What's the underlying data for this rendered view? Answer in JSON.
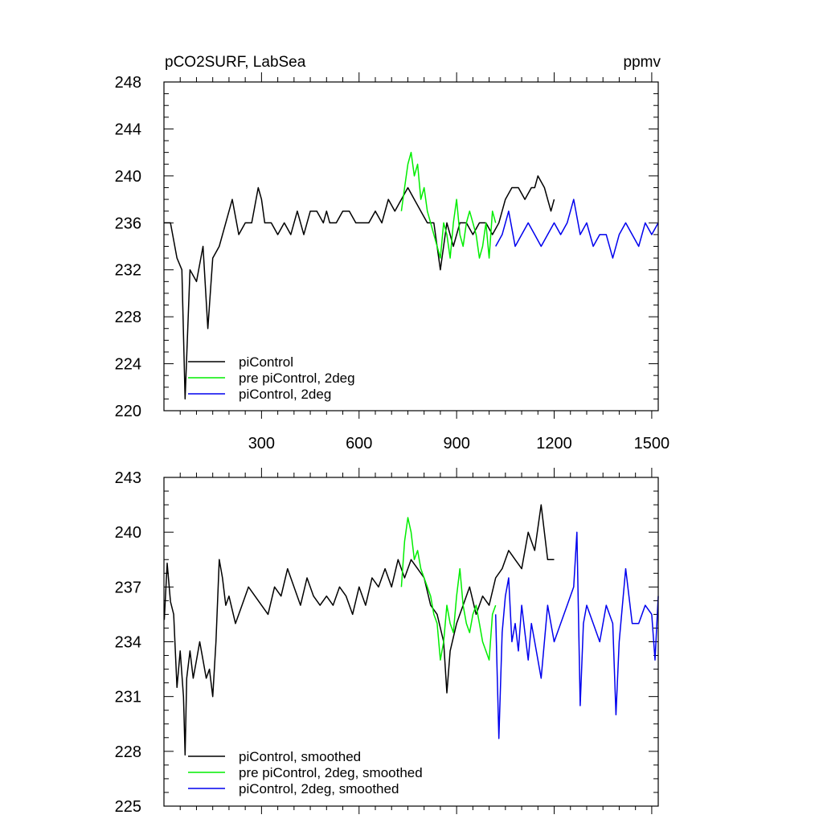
{
  "chart_data": [
    {
      "type": "line",
      "title": "pCO2SURF, LabSea",
      "units": "ppmv",
      "xlim": [
        0,
        1520
      ],
      "ylim": [
        220,
        248
      ],
      "x_ticks": [
        300,
        600,
        900,
        1200,
        1500
      ],
      "x_tick_labels": [
        "300",
        "600",
        "900",
        "1200",
        "1500"
      ],
      "y_ticks": [
        220,
        224,
        228,
        232,
        236,
        240,
        244,
        248
      ],
      "y_tick_labels": [
        "220",
        "224",
        "228",
        "232",
        "236",
        "240",
        "244",
        "248"
      ],
      "grid": false,
      "legend_position": "bottom-left",
      "series": [
        {
          "name": "piControl",
          "color": "#000000",
          "x": [
            1,
            20,
            40,
            55,
            65,
            80,
            100,
            120,
            135,
            150,
            170,
            190,
            210,
            230,
            250,
            270,
            290,
            300,
            310,
            330,
            350,
            370,
            390,
            410,
            430,
            450,
            470,
            490,
            500,
            510,
            530,
            550,
            570,
            590,
            610,
            630,
            650,
            670,
            690,
            710,
            730,
            750,
            770,
            790,
            810,
            830,
            850,
            870,
            890,
            910,
            930,
            950,
            970,
            990,
            1010,
            1030,
            1050,
            1070,
            1090,
            1110,
            1130,
            1140,
            1150,
            1170,
            1190,
            1200
          ],
          "y": [
            236,
            236,
            233,
            232,
            221,
            232,
            231,
            234,
            227,
            233,
            234,
            236,
            238,
            235,
            236,
            236,
            239,
            238,
            236,
            236,
            235,
            236,
            235,
            237,
            235,
            237,
            237,
            236,
            237,
            236,
            236,
            237,
            237,
            236,
            236,
            236,
            237,
            236,
            238,
            237,
            238,
            239,
            238,
            237,
            236,
            236,
            232,
            236,
            234,
            236,
            236,
            235,
            236,
            236,
            235,
            236,
            238,
            239,
            239,
            238,
            239,
            239,
            240,
            239,
            237,
            238
          ]
        },
        {
          "name": "pre piControl, 2deg",
          "color": "#00ee00",
          "x": [
            730,
            740,
            750,
            760,
            770,
            780,
            790,
            800,
            810,
            820,
            830,
            840,
            850,
            860,
            870,
            880,
            890,
            900,
            910,
            920,
            930,
            940,
            950,
            960,
            970,
            980,
            990,
            1000,
            1010,
            1020
          ],
          "y": [
            237,
            239,
            241,
            242,
            240,
            241,
            238,
            239,
            237,
            236,
            235,
            234,
            233,
            236,
            235,
            233,
            236,
            238,
            235,
            234,
            236,
            237,
            236,
            235,
            233,
            234,
            236,
            233,
            237,
            236
          ]
        },
        {
          "name": "piControl, 2deg",
          "color": "#0000ee",
          "x": [
            1020,
            1040,
            1060,
            1080,
            1100,
            1120,
            1140,
            1160,
            1180,
            1200,
            1220,
            1240,
            1260,
            1280,
            1300,
            1320,
            1340,
            1360,
            1380,
            1400,
            1420,
            1440,
            1460,
            1480,
            1500,
            1520
          ],
          "y": [
            234,
            235,
            237,
            234,
            235,
            236,
            235,
            234,
            235,
            236,
            235,
            236,
            238,
            235,
            236,
            234,
            235,
            235,
            233,
            235,
            236,
            235,
            234,
            236,
            235,
            236
          ]
        }
      ]
    },
    {
      "type": "line",
      "title": "",
      "units": "",
      "xlim": [
        0,
        1520
      ],
      "ylim": [
        225,
        243
      ],
      "x_ticks": [
        300,
        600,
        900,
        1200,
        1500
      ],
      "x_tick_labels": [],
      "y_ticks": [
        225,
        228,
        231,
        234,
        237,
        240,
        243
      ],
      "y_tick_labels": [
        "225",
        "228",
        "231",
        "234",
        "237",
        "240",
        "243"
      ],
      "grid": false,
      "legend_position": "bottom-left",
      "series": [
        {
          "name": "piControl, smoothed",
          "color": "#000000",
          "x": [
            1,
            10,
            20,
            30,
            40,
            50,
            60,
            65,
            70,
            80,
            90,
            100,
            110,
            120,
            130,
            140,
            150,
            160,
            170,
            180,
            190,
            200,
            220,
            240,
            260,
            280,
            300,
            320,
            340,
            360,
            380,
            400,
            420,
            440,
            460,
            480,
            500,
            520,
            540,
            560,
            580,
            600,
            620,
            640,
            660,
            680,
            700,
            720,
            740,
            760,
            780,
            800,
            820,
            840,
            860,
            870,
            880,
            900,
            920,
            940,
            960,
            980,
            1000,
            1020,
            1040,
            1060,
            1080,
            1100,
            1120,
            1140,
            1160,
            1180,
            1200
          ],
          "y": [
            235.2,
            238.3,
            236.2,
            235.5,
            231.5,
            233.5,
            231.0,
            227.8,
            232.0,
            233.5,
            232.0,
            233.0,
            234.0,
            233.0,
            232.0,
            232.5,
            231.0,
            234.0,
            238.5,
            237.5,
            236.0,
            236.5,
            235.0,
            236.0,
            237.0,
            236.5,
            236.0,
            235.5,
            237.0,
            236.5,
            238.0,
            237.0,
            236.0,
            237.5,
            236.5,
            236.0,
            236.5,
            236.0,
            237.0,
            236.5,
            235.5,
            237.0,
            236.0,
            237.5,
            237.0,
            238.0,
            237.0,
            238.5,
            237.5,
            238.5,
            238.0,
            237.5,
            236.0,
            235.5,
            234.0,
            231.2,
            233.5,
            235.0,
            236.0,
            237.0,
            235.5,
            236.5,
            236.0,
            237.5,
            238.0,
            239.0,
            238.5,
            238.0,
            240.0,
            239.0,
            241.5,
            238.5,
            238.5
          ]
        },
        {
          "name": "pre piControl, 2deg, smoothed",
          "color": "#00ee00",
          "x": [
            730,
            740,
            750,
            760,
            770,
            780,
            790,
            800,
            810,
            820,
            830,
            840,
            850,
            860,
            870,
            880,
            890,
            900,
            910,
            920,
            930,
            940,
            950,
            960,
            970,
            980,
            990,
            1000,
            1010,
            1020
          ],
          "y": [
            237.0,
            239.5,
            240.8,
            240.0,
            238.5,
            239.0,
            238.0,
            237.5,
            237.0,
            236.5,
            235.5,
            235.0,
            233.0,
            234.0,
            236.0,
            235.0,
            234.5,
            236.5,
            238.0,
            236.0,
            235.0,
            234.5,
            235.5,
            236.0,
            235.0,
            234.0,
            233.5,
            233.0,
            235.5,
            236.0
          ]
        },
        {
          "name": "piControl, 2deg, smoothed",
          "color": "#0000ee",
          "x": [
            1020,
            1030,
            1040,
            1050,
            1060,
            1070,
            1080,
            1090,
            1100,
            1110,
            1120,
            1130,
            1140,
            1160,
            1180,
            1200,
            1220,
            1240,
            1260,
            1270,
            1280,
            1290,
            1300,
            1320,
            1340,
            1360,
            1380,
            1390,
            1400,
            1420,
            1440,
            1460,
            1480,
            1500,
            1510,
            1520
          ],
          "y": [
            235.5,
            228.7,
            234.5,
            236.5,
            237.5,
            234.0,
            235.0,
            233.5,
            236.0,
            234.5,
            233.0,
            235.0,
            234.0,
            232.0,
            236.0,
            234.0,
            235.0,
            236.0,
            237.0,
            240.0,
            230.5,
            235.0,
            236.0,
            235.0,
            234.0,
            236.0,
            235.0,
            230.0,
            234.0,
            238.0,
            235.0,
            235.0,
            236.0,
            235.5,
            233.0,
            236.5
          ]
        }
      ]
    }
  ]
}
